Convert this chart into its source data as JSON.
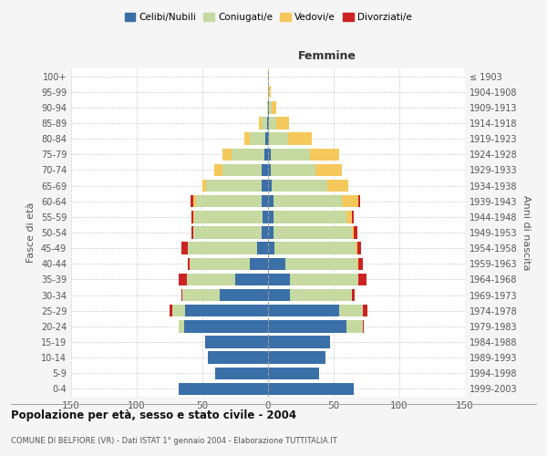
{
  "age_groups": [
    "0-4",
    "5-9",
    "10-14",
    "15-19",
    "20-24",
    "25-29",
    "30-34",
    "35-39",
    "40-44",
    "45-49",
    "50-54",
    "55-59",
    "60-64",
    "65-69",
    "70-74",
    "75-79",
    "80-84",
    "85-89",
    "90-94",
    "95-99",
    "100+"
  ],
  "birth_years": [
    "1999-2003",
    "1994-1998",
    "1989-1993",
    "1984-1988",
    "1979-1983",
    "1974-1978",
    "1969-1973",
    "1964-1968",
    "1959-1963",
    "1954-1958",
    "1949-1953",
    "1944-1948",
    "1939-1943",
    "1934-1938",
    "1929-1933",
    "1924-1928",
    "1919-1923",
    "1914-1918",
    "1909-1913",
    "1904-1908",
    "≤ 1903"
  ],
  "colors": {
    "celibi": "#3a6fa8",
    "coniugati": "#c5d9a0",
    "vedovi": "#f5c85c",
    "divorziati": "#cc2222"
  },
  "males": {
    "celibi": [
      68,
      40,
      46,
      48,
      64,
      63,
      37,
      25,
      14,
      8,
      5,
      4,
      5,
      5,
      5,
      3,
      2,
      1,
      0,
      0,
      0
    ],
    "coniugati": [
      0,
      0,
      0,
      0,
      4,
      10,
      28,
      37,
      46,
      53,
      52,
      52,
      50,
      42,
      30,
      25,
      12,
      4,
      1,
      0,
      0
    ],
    "vedovi": [
      0,
      0,
      0,
      0,
      0,
      0,
      0,
      0,
      0,
      0,
      0,
      1,
      2,
      3,
      6,
      7,
      4,
      2,
      0,
      0,
      0
    ],
    "divorziati": [
      0,
      0,
      0,
      0,
      0,
      2,
      1,
      6,
      1,
      5,
      1,
      1,
      2,
      0,
      0,
      0,
      0,
      0,
      0,
      0,
      0
    ]
  },
  "females": {
    "celibi": [
      65,
      39,
      44,
      47,
      60,
      54,
      17,
      17,
      13,
      5,
      4,
      4,
      4,
      3,
      2,
      2,
      1,
      1,
      1,
      0,
      0
    ],
    "coniugati": [
      0,
      0,
      0,
      0,
      12,
      18,
      47,
      52,
      55,
      62,
      60,
      56,
      52,
      42,
      34,
      30,
      14,
      5,
      2,
      1,
      0
    ],
    "vedovi": [
      0,
      0,
      0,
      0,
      0,
      0,
      0,
      0,
      1,
      1,
      1,
      4,
      13,
      16,
      20,
      22,
      18,
      10,
      3,
      1,
      1
    ],
    "divorziati": [
      0,
      0,
      0,
      0,
      1,
      4,
      2,
      6,
      3,
      3,
      3,
      1,
      1,
      0,
      0,
      0,
      0,
      0,
      0,
      0,
      0
    ]
  },
  "xlim": 150,
  "title": "Popolazione per età, sesso e stato civile - 2004",
  "subtitle": "COMUNE DI BELFIORE (VR) - Dati ISTAT 1° gennaio 2004 - Elaborazione TUTTITALIA.IT",
  "ylabel_left": "Fasce di età",
  "ylabel_right": "Anni di nascita",
  "xlabel_right": "Femmine",
  "legend_labels": [
    "Celibi/Nubili",
    "Coniugati/e",
    "Vedovi/e",
    "Divorziati/e"
  ],
  "bg_color": "#f5f5f5",
  "plot_bg_color": "#ffffff"
}
